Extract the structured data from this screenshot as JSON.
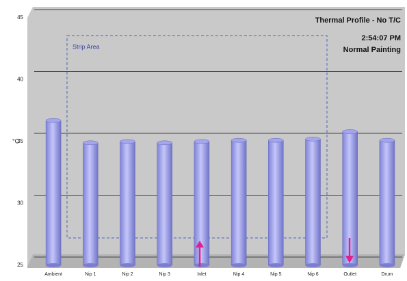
{
  "chart_data": {
    "type": "bar",
    "title": "Thermal Profile - No T/C",
    "subtitle": "2:54:07 PM",
    "annotations": [
      "Normal Painting",
      "Strip Area"
    ],
    "y_label": "°C",
    "categories": [
      "Ambient",
      "Nip 1",
      "Nip 2",
      "Nip 3",
      "Inlet",
      "Nip 4",
      "Nip 5",
      "Nip 6",
      "Outlet",
      "Drum"
    ],
    "values": [
      36.7,
      34.9,
      35.0,
      34.9,
      35.0,
      35.1,
      35.1,
      35.2,
      35.8,
      35.1
    ],
    "color": "#a4a6ec",
    "ylim": [
      25,
      45
    ],
    "yticks": [
      25,
      30,
      35,
      40,
      45
    ],
    "grid": true
  }
}
